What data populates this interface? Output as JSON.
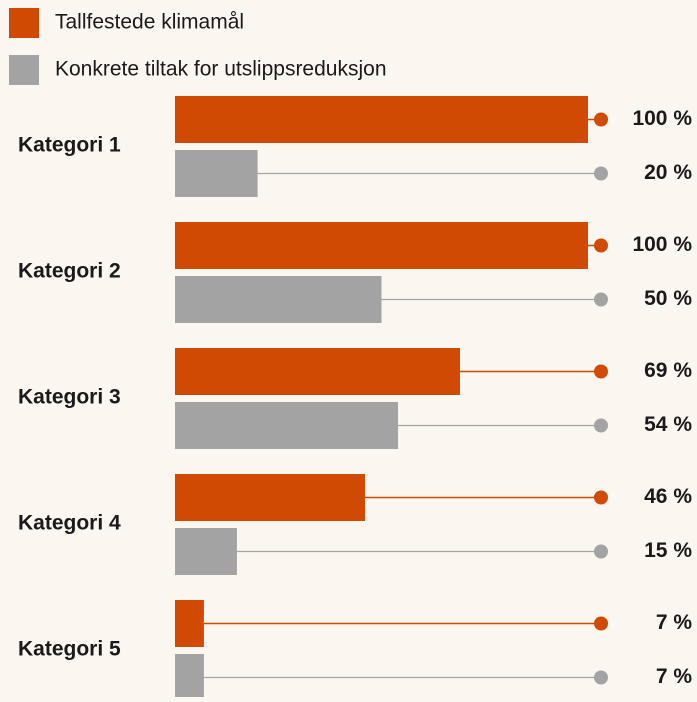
{
  "chart_data": {
    "type": "bar",
    "orientation": "horizontal",
    "categories": [
      "Kategori 1",
      "Kategori 2",
      "Kategori 3",
      "Kategori 4",
      "Kategori 5"
    ],
    "series": [
      {
        "name": "Tallfestede klimamål",
        "color": "#d04a02",
        "values": [
          100,
          100,
          69,
          46,
          7
        ],
        "value_labels": [
          "100 %",
          "100 %",
          "69 %",
          "46 %",
          "7 %"
        ]
      },
      {
        "name": "Konkrete tiltak for utslippsreduksjon",
        "color": "#a3a3a3",
        "values": [
          20,
          50,
          54,
          15,
          7
        ],
        "value_labels": [
          "20 %",
          "50 %",
          "54 %",
          "15 %",
          "7 %"
        ]
      }
    ],
    "xlim": [
      0,
      100
    ],
    "legend": "top-left"
  }
}
